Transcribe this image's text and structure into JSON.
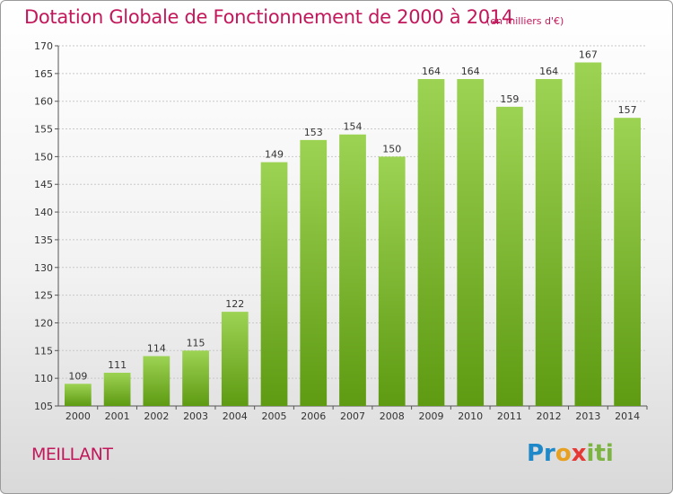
{
  "header": {
    "title": "Dotation Globale de Fonctionnement de 2000 à 2014",
    "subtitle": "(en milliers d'€)"
  },
  "footer": {
    "city": "MEILLANT",
    "logo_text": "Proxiti",
    "logo_parts": [
      "Pr",
      "o",
      "x",
      "iti"
    ]
  },
  "colors": {
    "title": "#c2185b",
    "bar_top": "#9dd353",
    "bar_bottom": "#5e9a12",
    "grid": "#c8c8c8"
  },
  "chart_data": {
    "type": "bar",
    "title": "Dotation Globale de Fonctionnement de 2000 à 2014",
    "subtitle": "(en milliers d'€)",
    "xlabel": "",
    "ylabel": "",
    "categories": [
      "2000",
      "2001",
      "2002",
      "2003",
      "2004",
      "2005",
      "2006",
      "2007",
      "2008",
      "2009",
      "2010",
      "2011",
      "2012",
      "2013",
      "2014"
    ],
    "values": [
      109,
      111,
      114,
      115,
      122,
      149,
      153,
      154,
      150,
      164,
      164,
      159,
      164,
      167,
      157
    ],
    "ylim": [
      105,
      170
    ],
    "yticks": [
      105,
      110,
      115,
      120,
      125,
      130,
      135,
      140,
      145,
      150,
      155,
      160,
      165,
      170
    ],
    "grid": true,
    "legend": "none"
  }
}
